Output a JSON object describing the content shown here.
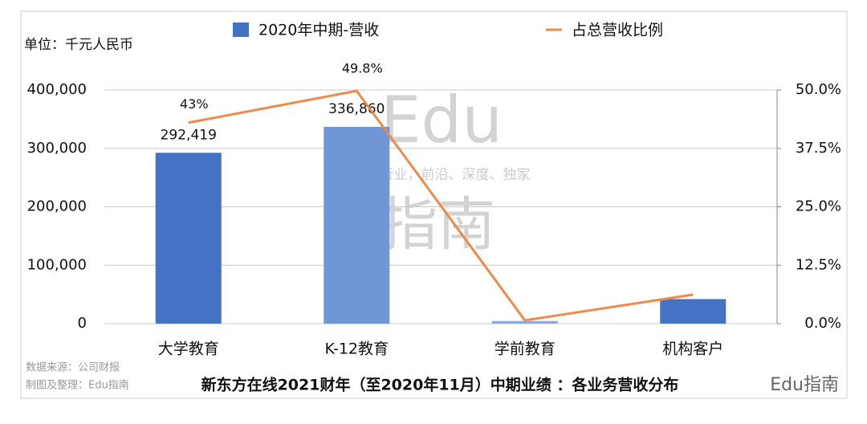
{
  "chart_data": {
    "type": "bar-line",
    "unit_label": "单位：千元人民币",
    "title": "新东方在线2021财年（至2020年11月）中期业绩 ：各业务营收分布",
    "source": "数据来源：公司财报",
    "credit": "制图及整理：Edu指南",
    "watermark": [
      "Edu",
      "教育行业，前沿、深度、独家",
      "指南"
    ],
    "logo": "Edu指南",
    "categories": [
      "大学教育",
      "K-12教育",
      "学前教育",
      "机构客户"
    ],
    "series": [
      {
        "name": "2020年中期-营收",
        "type": "bar",
        "color": "#4472c4",
        "colors": [
          "#4472c4",
          "#7096d6",
          "#8faadc",
          "#4472c4"
        ],
        "values": [
          292419,
          336860,
          4500,
          42000
        ],
        "value_labels": [
          "292,419",
          "336,860",
          null,
          null
        ]
      },
      {
        "name": "占总营收比例",
        "type": "line",
        "axis": "y2",
        "color": "#ee8a4a",
        "values": [
          43,
          49.8,
          0.7,
          6.2
        ],
        "value_labels": [
          "43%",
          "49.8%",
          null,
          null
        ]
      }
    ],
    "ylim": [
      0,
      400000
    ],
    "yticks": [
      0,
      {
        "value": 100000,
        "label": "100,000"
      },
      {
        "value": 200000,
        "label": "200,000"
      },
      {
        "value": 300000,
        "label": "300,000"
      },
      {
        "value": 400000,
        "label": "400,000"
      }
    ],
    "y2lim": [
      0,
      50
    ],
    "y2ticks": [
      {
        "value": 0,
        "label": "0.0%"
      },
      {
        "value": 12.5,
        "label": "12.5%"
      },
      {
        "value": 25,
        "label": "25.0%"
      },
      {
        "value": 37.5,
        "label": "37.5%"
      },
      {
        "value": 50,
        "label": "50.0%"
      }
    ],
    "grid": true
  }
}
